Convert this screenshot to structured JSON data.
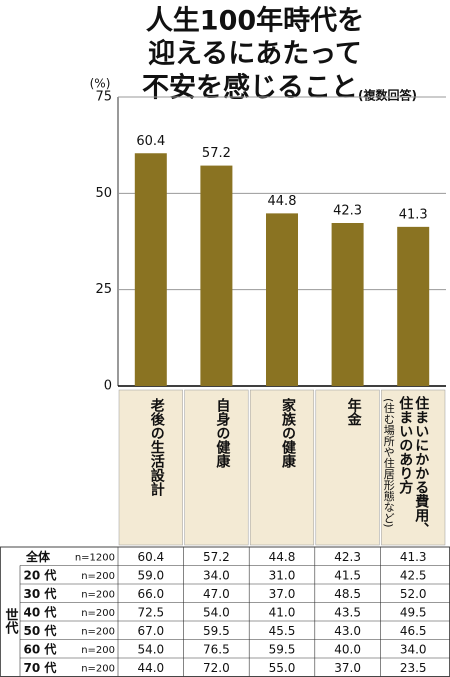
{
  "chart_data": {
    "type": "bar",
    "title": [
      "人生100年時代を",
      "迎えるにあたって",
      "不安を感じること"
    ],
    "subtitle": "(複数回答)",
    "y_label": "(%)",
    "categories": [
      "老後の生活設計",
      "自身の健康",
      "家族の健康",
      "年金",
      "住まいにかかる費用、住まいのあり方"
    ],
    "category_note": "(住む場所や住居形態など)",
    "values": [
      60.4,
      57.2,
      44.8,
      42.3,
      41.3
    ],
    "color": "#8a7322",
    "ylim": [
      0,
      75
    ],
    "yticks": [
      0,
      25,
      50,
      75
    ],
    "grid": true
  },
  "table": {
    "group_label": "世代",
    "rows": [
      [
        "全体",
        "n=1200",
        "60.4",
        "57.2",
        "44.8",
        "42.3",
        "41.3"
      ],
      [
        "20 代",
        "n=200",
        "59.0",
        "34.0",
        "31.0",
        "41.5",
        "42.5"
      ],
      [
        "30 代",
        "n=200",
        "66.0",
        "47.0",
        "37.0",
        "48.5",
        "52.0"
      ],
      [
        "40 代",
        "n=200",
        "72.5",
        "54.0",
        "41.0",
        "43.5",
        "49.5"
      ],
      [
        "50 代",
        "n=200",
        "67.0",
        "59.5",
        "45.5",
        "43.0",
        "46.5"
      ],
      [
        "60 代",
        "n=200",
        "54.0",
        "76.5",
        "59.5",
        "40.0",
        "34.0"
      ],
      [
        "70 代",
        "n=200",
        "44.0",
        "72.0",
        "55.0",
        "37.0",
        "23.5"
      ]
    ]
  }
}
